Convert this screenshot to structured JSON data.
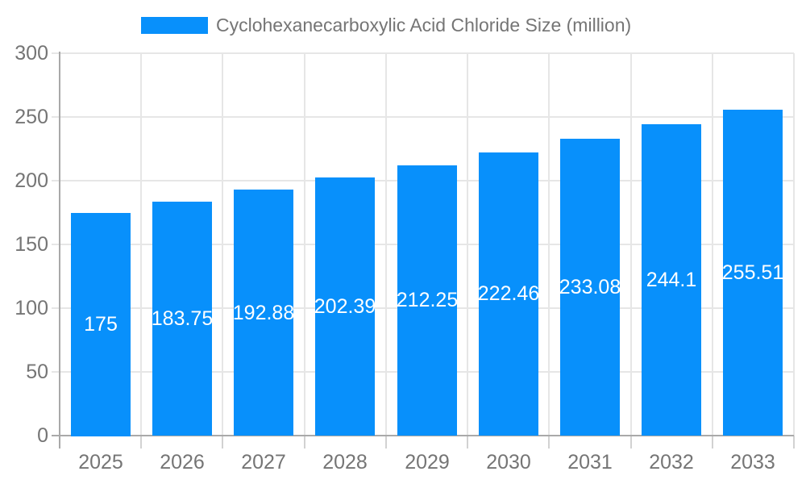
{
  "legend": {
    "label": "Cyclohexanecarboxylic Acid Chloride Size (million)"
  },
  "colors": {
    "bar": "#0890fb",
    "bar_label": "#ffffff",
    "axis": "#a9a9a9",
    "grid": "#e6e6e6",
    "tick": "#d2d2d2",
    "text": "#757575"
  },
  "chart_data": {
    "type": "bar",
    "title": "Cyclohexanecarboxylic Acid Chloride Size (million)",
    "categories": [
      "2025",
      "2026",
      "2027",
      "2028",
      "2029",
      "2030",
      "2031",
      "2032",
      "2033"
    ],
    "series": [
      {
        "name": "Cyclohexanecarboxylic Acid Chloride Size (million)",
        "values": [
          175,
          183.75,
          192.88,
          202.39,
          212.25,
          222.46,
          233.08,
          244.1,
          255.51
        ]
      }
    ],
    "bar_value_labels": [
      "175",
      "183.75",
      "192.88",
      "202.39",
      "212.25",
      "222.46",
      "233.08",
      "244.1",
      "255.51"
    ],
    "xlabel": "",
    "ylabel": "",
    "ylim": [
      0,
      300
    ],
    "yticks": [
      0,
      50,
      100,
      150,
      200,
      250,
      300
    ],
    "grid": true,
    "legend_position": "top"
  }
}
